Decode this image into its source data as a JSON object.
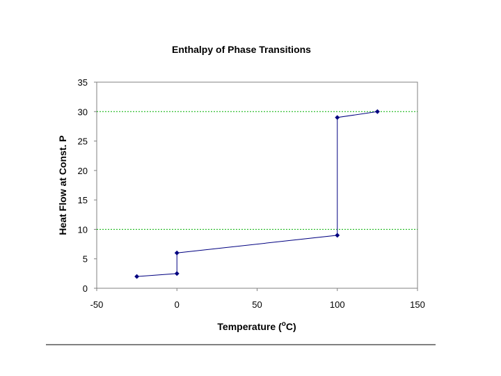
{
  "chart_data": {
    "type": "line",
    "title": "Enthalpy of Phase Transitions",
    "xlabel": "Temperature (",
    "xlabel_superscript": "o",
    "xlabel_suffix": "C)",
    "ylabel": "Heat Flow at Const. P",
    "xlim": [
      -50,
      150
    ],
    "ylim": [
      0,
      35
    ],
    "xticks": [
      "-50",
      "0",
      "50",
      "100",
      "150"
    ],
    "yticks": [
      "0",
      "5",
      "10",
      "15",
      "20",
      "25",
      "30",
      "35"
    ],
    "reference_lines_y": [
      10,
      30
    ],
    "series": [
      {
        "x": [
          -25,
          0,
          0,
          100,
          100,
          125
        ],
        "y": [
          2,
          2.5,
          6,
          9,
          29,
          30
        ]
      }
    ],
    "colors": {
      "line": "#000080",
      "marker": "#000080",
      "reference_line": "#00b000",
      "frame": "#808080"
    },
    "grid": false,
    "legend": "none"
  }
}
